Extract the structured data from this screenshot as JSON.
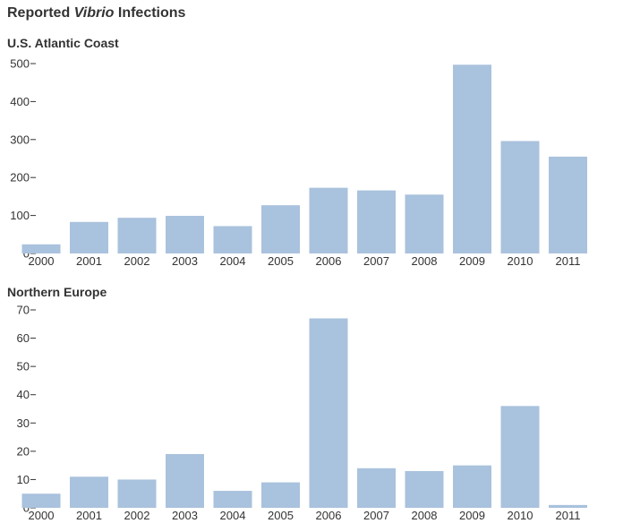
{
  "title": {
    "prefix": "Reported ",
    "italic": "Vibrio",
    "suffix": " Infections"
  },
  "chart_data": [
    {
      "type": "bar",
      "title": "U.S. Atlantic Coast",
      "categories": [
        "2000",
        "2001",
        "2002",
        "2003",
        "2004",
        "2005",
        "2006",
        "2007",
        "2008",
        "2009",
        "2010",
        "2011"
      ],
      "values": [
        24,
        83,
        94,
        99,
        72,
        127,
        173,
        166,
        155,
        497,
        296,
        255
      ],
      "ylim": [
        0,
        500
      ],
      "yticks": [
        0,
        100,
        200,
        300,
        400,
        500
      ],
      "bar_color": "#a9c2dd",
      "grid": false
    },
    {
      "type": "bar",
      "title": "Northern Europe",
      "categories": [
        "2000",
        "2001",
        "2002",
        "2003",
        "2004",
        "2005",
        "2006",
        "2007",
        "2008",
        "2009",
        "2010",
        "2011"
      ],
      "values": [
        5,
        11,
        10,
        19,
        6,
        9,
        67,
        14,
        13,
        15,
        36,
        1
      ],
      "ylim": [
        0,
        70
      ],
      "yticks": [
        0,
        10,
        20,
        30,
        40,
        50,
        60,
        70
      ],
      "bar_color": "#a9c2dd",
      "grid": false
    }
  ]
}
